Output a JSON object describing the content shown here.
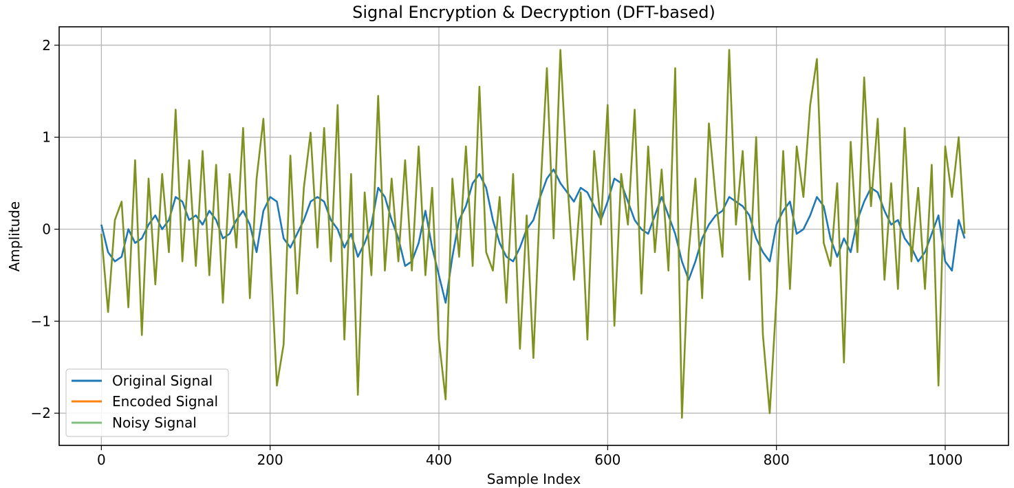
{
  "chart_data": {
    "type": "line",
    "title": "Signal Encryption & Decryption (DFT-based)",
    "xlabel": "Sample Index",
    "ylabel": "Amplitude",
    "xlim": [
      -50,
      1075
    ],
    "ylim": [
      -2.35,
      2.2
    ],
    "xticks": [
      0,
      200,
      400,
      600,
      800,
      1000
    ],
    "yticks": [
      -2,
      -1,
      0,
      1,
      2
    ],
    "xtick_labels": [
      "0",
      "200",
      "400",
      "600",
      "800",
      "1000"
    ],
    "ytick_labels": [
      "−2",
      "−1",
      "0",
      "1",
      "2"
    ],
    "grid": true,
    "legend_position": "lower-left",
    "series": [
      {
        "name": "Original Signal",
        "color": "#1f77b4",
        "x": [
          0,
          8,
          16,
          24,
          32,
          40,
          48,
          56,
          64,
          72,
          80,
          88,
          96,
          104,
          112,
          120,
          128,
          136,
          144,
          152,
          160,
          168,
          176,
          184,
          192,
          200,
          208,
          216,
          224,
          232,
          240,
          248,
          256,
          264,
          272,
          280,
          288,
          296,
          304,
          312,
          320,
          328,
          336,
          344,
          352,
          360,
          368,
          376,
          384,
          392,
          400,
          408,
          416,
          424,
          432,
          440,
          448,
          456,
          464,
          472,
          480,
          488,
          496,
          504,
          512,
          520,
          528,
          536,
          544,
          552,
          560,
          568,
          576,
          584,
          592,
          600,
          608,
          616,
          624,
          632,
          640,
          648,
          656,
          664,
          672,
          680,
          688,
          696,
          704,
          712,
          720,
          728,
          736,
          744,
          752,
          760,
          768,
          776,
          784,
          792,
          800,
          808,
          816,
          824,
          832,
          840,
          848,
          856,
          864,
          872,
          880,
          888,
          896,
          904,
          912,
          920,
          928,
          936,
          944,
          952,
          960,
          968,
          976,
          984,
          992,
          1000,
          1008,
          1016,
          1023
        ],
        "y": [
          0.05,
          -0.25,
          -0.35,
          -0.3,
          0.0,
          -0.15,
          -0.1,
          0.05,
          0.15,
          0.0,
          0.1,
          0.35,
          0.3,
          0.1,
          0.15,
          0.05,
          0.2,
          0.1,
          -0.1,
          -0.05,
          0.1,
          0.2,
          0.05,
          -0.25,
          0.2,
          0.35,
          0.3,
          -0.1,
          -0.2,
          -0.05,
          0.1,
          0.3,
          0.35,
          0.3,
          0.1,
          0.0,
          -0.2,
          -0.05,
          -0.3,
          -0.15,
          0.05,
          0.45,
          0.35,
          0.1,
          -0.1,
          -0.4,
          -0.35,
          -0.15,
          0.2,
          -0.2,
          -0.5,
          -0.8,
          -0.3,
          0.1,
          0.25,
          0.5,
          0.6,
          0.45,
          0.1,
          -0.15,
          -0.3,
          -0.35,
          -0.2,
          0.0,
          0.1,
          0.35,
          0.55,
          0.65,
          0.5,
          0.4,
          0.3,
          0.45,
          0.4,
          0.25,
          0.1,
          0.3,
          0.55,
          0.5,
          0.3,
          0.1,
          0.0,
          -0.05,
          0.15,
          0.35,
          0.15,
          -0.05,
          -0.35,
          -0.55,
          -0.35,
          -0.1,
          0.05,
          0.15,
          0.2,
          0.35,
          0.3,
          0.25,
          0.15,
          -0.1,
          -0.25,
          -0.35,
          0.05,
          0.2,
          0.3,
          -0.05,
          0.0,
          0.15,
          0.35,
          0.25,
          -0.1,
          -0.3,
          -0.1,
          -0.25,
          0.1,
          0.3,
          0.45,
          0.4,
          0.2,
          0.05,
          0.1,
          -0.1,
          -0.2,
          -0.35,
          -0.25,
          -0.05,
          0.15,
          -0.35,
          -0.45,
          0.1,
          -0.1
        ]
      },
      {
        "name": "Encoded Signal",
        "color": "#ff7f0e",
        "x": [],
        "y": []
      },
      {
        "name": "Noisy Signal",
        "color": "#7fbf7f",
        "x": [],
        "y": []
      },
      {
        "name": "",
        "color": "#7f9220",
        "x": [
          0,
          8,
          16,
          24,
          32,
          40,
          48,
          56,
          64,
          72,
          80,
          88,
          96,
          104,
          112,
          120,
          128,
          136,
          144,
          152,
          160,
          168,
          176,
          184,
          192,
          200,
          208,
          216,
          224,
          232,
          240,
          248,
          256,
          264,
          272,
          280,
          288,
          296,
          304,
          312,
          320,
          328,
          336,
          344,
          352,
          360,
          368,
          376,
          384,
          392,
          400,
          408,
          416,
          424,
          432,
          440,
          448,
          456,
          464,
          472,
          480,
          488,
          496,
          504,
          512,
          520,
          528,
          536,
          544,
          552,
          560,
          568,
          576,
          584,
          592,
          600,
          608,
          616,
          624,
          632,
          640,
          648,
          656,
          664,
          672,
          680,
          688,
          696,
          704,
          712,
          720,
          728,
          736,
          744,
          752,
          760,
          768,
          776,
          784,
          792,
          800,
          808,
          816,
          824,
          832,
          840,
          848,
          856,
          864,
          872,
          880,
          888,
          896,
          904,
          912,
          920,
          928,
          936,
          944,
          952,
          960,
          968,
          976,
          984,
          992,
          1000,
          1008,
          1016,
          1023
        ],
        "y": [
          -0.05,
          -0.9,
          0.1,
          0.3,
          -0.85,
          0.75,
          -1.15,
          0.55,
          -0.6,
          0.6,
          -0.25,
          1.3,
          -0.35,
          0.75,
          -0.4,
          0.85,
          -0.5,
          0.7,
          -0.8,
          0.6,
          -0.2,
          1.1,
          -0.75,
          0.55,
          1.2,
          -0.2,
          -1.7,
          -1.25,
          0.8,
          -0.7,
          0.45,
          1.05,
          -0.2,
          1.1,
          -0.35,
          1.35,
          -1.2,
          0.6,
          -1.8,
          0.4,
          -0.5,
          1.45,
          -0.45,
          0.55,
          -0.35,
          0.75,
          -0.45,
          0.9,
          -0.5,
          0.45,
          -1.2,
          -1.85,
          0.55,
          -0.3,
          0.9,
          -0.4,
          1.55,
          -0.25,
          -0.45,
          0.35,
          -0.8,
          0.6,
          -1.3,
          0.15,
          -1.4,
          0.35,
          1.75,
          -0.1,
          1.95,
          0.55,
          -0.55,
          0.4,
          -1.2,
          0.85,
          0.05,
          1.35,
          -1.05,
          0.6,
          0.05,
          1.3,
          -0.7,
          0.9,
          -0.25,
          0.65,
          -0.45,
          1.75,
          -2.05,
          -0.25,
          0.55,
          -0.75,
          1.15,
          0.35,
          -0.3,
          1.95,
          0.05,
          0.85,
          -0.55,
          1.0,
          -1.15,
          -2.0,
          -0.75,
          0.85,
          -0.65,
          0.9,
          0.35,
          1.35,
          1.85,
          -0.15,
          -0.4,
          0.5,
          -1.45,
          0.95,
          -0.25,
          1.65,
          0.25,
          1.2,
          -0.55,
          0.5,
          -0.65,
          1.1,
          -0.35,
          0.45,
          -0.65,
          0.7,
          -1.7,
          0.9,
          0.35,
          1.0,
          -0.05
        ]
      }
    ]
  }
}
